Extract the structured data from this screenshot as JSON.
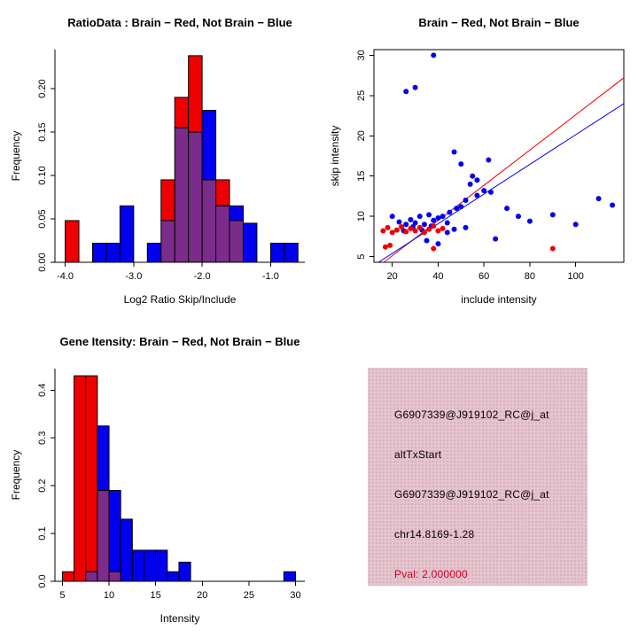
{
  "colors": {
    "red": "#ee0000",
    "blue": "#0000ee",
    "overlap": "#7b2c8b",
    "foreground": "#000000"
  },
  "panels": {
    "ratio_hist": {
      "title": "RatioData : Brain − Red, Not Brain − Blue"
    },
    "scatter": {
      "title": "Brain − Red, Not Brain − Blue"
    },
    "gene_hist": {
      "title": "Gene Itensity: Brain − Red, Not Brain − Blue"
    },
    "info": {
      "bg_color": "#e6c4ce",
      "pval_color": "#cc0022",
      "lines": [
        "G6907339@J919102_RC@j_at",
        "altTxStart",
        "G6907339@J919102_RC@j_at",
        "chr14.8169-1.28"
      ],
      "pval": "Pval: 2.000000"
    }
  },
  "chart_data": [
    {
      "type": "bar",
      "title": "RatioData : Brain − Red, Not Brain − Blue",
      "xlabel": "Log2 Ratio Skip/Include",
      "ylabel": "Frequency",
      "xlim": [
        -4.15,
        -0.5
      ],
      "ylim": [
        0,
        0.245
      ],
      "xticks": [
        -4.0,
        -3.0,
        -2.0,
        -1.0
      ],
      "xtick_labels": [
        "-4.0",
        "-3.0",
        "-2.0",
        "-1.0"
      ],
      "yticks": [
        0.0,
        0.05,
        0.1,
        0.15,
        0.2
      ],
      "ytick_labels": [
        "0.00",
        "0.05",
        "0.10",
        "0.15",
        "0.20"
      ],
      "bin_start": -4.0,
      "bin_width": 0.2,
      "grid": false,
      "box": false,
      "legend": "none",
      "series": [
        {
          "name": "Brain (red)",
          "color": "red",
          "values": [
            0.048,
            0,
            0,
            0,
            0,
            0,
            0,
            0.095,
            0.19,
            0.238,
            0.095,
            0.095,
            0.048,
            0,
            0,
            0,
            0
          ]
        },
        {
          "name": "Not Brain (blue)",
          "color": "blue",
          "values": [
            0,
            0,
            0.022,
            0.022,
            0.065,
            0,
            0.022,
            0.048,
            0.155,
            0.15,
            0.175,
            0.065,
            0.065,
            0.045,
            0,
            0.022,
            0.022
          ]
        }
      ]
    },
    {
      "type": "scatter",
      "title": "Brain − Red, Not Brain − Blue",
      "xlabel": "include intensity",
      "ylabel": "skip intensity",
      "xlim": [
        12,
        121
      ],
      "ylim": [
        4.3,
        30.7
      ],
      "xticks": [
        20,
        40,
        60,
        80,
        100
      ],
      "xtick_labels": [
        "20",
        "40",
        "60",
        "80",
        "100"
      ],
      "yticks": [
        5,
        10,
        15,
        20,
        25,
        30
      ],
      "ytick_labels": [
        "5",
        "10",
        "15",
        "20",
        "25",
        "30"
      ],
      "grid": false,
      "box": true,
      "legend": "none",
      "series": [
        {
          "name": "Not Brain (blue)",
          "color": "blue",
          "points": [
            [
              38,
              30
            ],
            [
              30,
              26
            ],
            [
              26,
              25.5
            ],
            [
              47,
              18
            ],
            [
              62,
              17
            ],
            [
              50,
              16.5
            ],
            [
              55,
              15
            ],
            [
              57,
              14.5
            ],
            [
              54,
              14
            ],
            [
              60,
              13.2
            ],
            [
              63,
              13
            ],
            [
              57,
              12.6
            ],
            [
              110,
              12.2
            ],
            [
              116,
              11.4
            ],
            [
              70,
              11
            ],
            [
              50,
              11.2
            ],
            [
              52,
              12
            ],
            [
              48,
              11
            ],
            [
              45,
              10.5
            ],
            [
              20,
              10
            ],
            [
              23,
              9.3
            ],
            [
              26,
              9
            ],
            [
              28,
              9.6
            ],
            [
              30,
              9.2
            ],
            [
              32,
              10
            ],
            [
              34,
              9
            ],
            [
              36,
              10.2
            ],
            [
              38,
              9.5
            ],
            [
              40,
              9.8
            ],
            [
              42,
              10
            ],
            [
              44,
              9.2
            ],
            [
              75,
              10
            ],
            [
              80,
              9.4
            ],
            [
              90,
              10.2
            ],
            [
              100,
              9
            ],
            [
              65,
              7.2
            ],
            [
              35,
              7
            ],
            [
              40,
              6.6
            ],
            [
              47,
              8.4
            ],
            [
              52,
              8.6
            ],
            [
              44,
              8
            ],
            [
              37,
              8.8
            ],
            [
              33,
              8.3
            ],
            [
              29,
              8.7
            ],
            [
              25,
              8.2
            ]
          ]
        },
        {
          "name": "Brain (red)",
          "color": "red",
          "points": [
            [
              16,
              8.2
            ],
            [
              18,
              8.6
            ],
            [
              20,
              8
            ],
            [
              22,
              8.3
            ],
            [
              24,
              8.7
            ],
            [
              26,
              8.1
            ],
            [
              28,
              8.5
            ],
            [
              30,
              8.2
            ],
            [
              32,
              8.6
            ],
            [
              34,
              8
            ],
            [
              36,
              8.4
            ],
            [
              38,
              8.8
            ],
            [
              40,
              8.2
            ],
            [
              42,
              8.5
            ],
            [
              19,
              6.4
            ],
            [
              38,
              6
            ],
            [
              90,
              6
            ],
            [
              17,
              6.2
            ]
          ]
        }
      ],
      "lines": [
        {
          "name": "brain-fit-line",
          "color": "red",
          "from": [
            14,
            3.8
          ],
          "to": [
            121,
            27.2
          ]
        },
        {
          "name": "notbrain-fit-line",
          "color": "blue",
          "from": [
            14,
            4.3
          ],
          "to": [
            121,
            24.0
          ]
        }
      ]
    },
    {
      "type": "bar",
      "title": "Gene Itensity: Brain − Red, Not Brain − Blue",
      "xlabel": "Intensity",
      "ylabel": "Frequency",
      "xlim": [
        4.2,
        31
      ],
      "ylim": [
        0,
        0.445
      ],
      "xticks": [
        5,
        10,
        15,
        20,
        25,
        30
      ],
      "xtick_labels": [
        "5",
        "10",
        "15",
        "20",
        "25",
        "30"
      ],
      "yticks": [
        0.0,
        0.1,
        0.2,
        0.3,
        0.4
      ],
      "ytick_labels": [
        "0.0",
        "0.1",
        "0.2",
        "0.3",
        "0.4"
      ],
      "bin_start": 5,
      "bin_width": 1.25,
      "grid": false,
      "box": false,
      "legend": "none",
      "series": [
        {
          "name": "Brain (red)",
          "color": "red",
          "values": [
            0.02,
            0.43,
            0.43,
            0.19,
            0.02,
            0,
            0,
            0,
            0,
            0,
            0,
            0,
            0,
            0,
            0,
            0,
            0,
            0,
            0,
            0
          ]
        },
        {
          "name": "Not Brain (blue)",
          "color": "blue",
          "values": [
            0,
            0,
            0.02,
            0.325,
            0.19,
            0.13,
            0.065,
            0.065,
            0.065,
            0.02,
            0.04,
            0,
            0,
            0,
            0,
            0,
            0,
            0,
            0,
            0.02
          ]
        }
      ]
    }
  ]
}
